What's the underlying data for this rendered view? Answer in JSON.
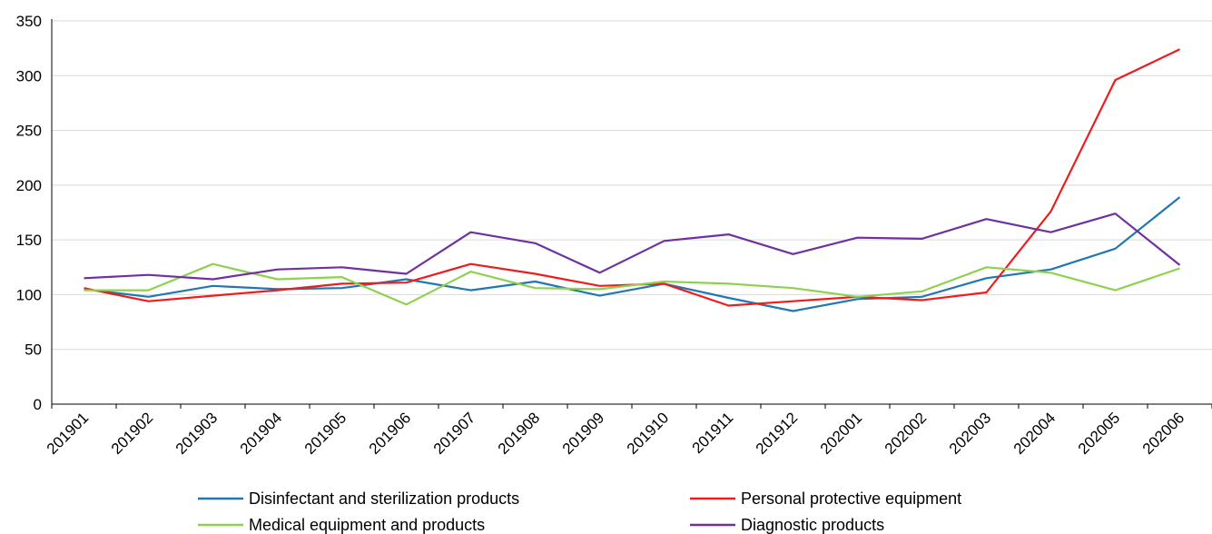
{
  "chart_data": {
    "type": "line",
    "title": "",
    "xlabel": "",
    "ylabel": "",
    "ylim": [
      0,
      350
    ],
    "yticks": [
      0,
      50,
      100,
      150,
      200,
      250,
      300,
      350
    ],
    "grid": true,
    "legend_position": "bottom",
    "categories": [
      "201901",
      "201902",
      "201903",
      "201904",
      "201905",
      "201906",
      "201907",
      "201908",
      "201909",
      "201910",
      "201911",
      "201912",
      "202001",
      "202002",
      "202003",
      "202004",
      "202005",
      "202006"
    ],
    "series": [
      {
        "name": "Disinfectant and sterilization products",
        "color": "#1f77b4",
        "values": [
          105,
          98,
          108,
          105,
          106,
          114,
          104,
          112,
          99,
          110,
          97,
          85,
          96,
          98,
          115,
          123,
          142,
          189
        ]
      },
      {
        "name": "Personal protective equipment",
        "color": "#ee1c1c",
        "values": [
          106,
          94,
          99,
          104,
          110,
          111,
          128,
          119,
          108,
          110,
          90,
          94,
          98,
          95,
          102,
          176,
          296,
          324
        ]
      },
      {
        "name": "Medical equipment and products",
        "color": "#8fd14f",
        "values": [
          104,
          104,
          128,
          114,
          116,
          91,
          121,
          106,
          105,
          112,
          110,
          106,
          98,
          103,
          125,
          120,
          104,
          124
        ]
      },
      {
        "name": "Diagnostic products",
        "color": "#7030a0",
        "values": [
          115,
          118,
          114,
          123,
          125,
          119,
          157,
          147,
          120,
          149,
          155,
          137,
          152,
          151,
          169,
          157,
          174,
          127
        ]
      }
    ]
  }
}
